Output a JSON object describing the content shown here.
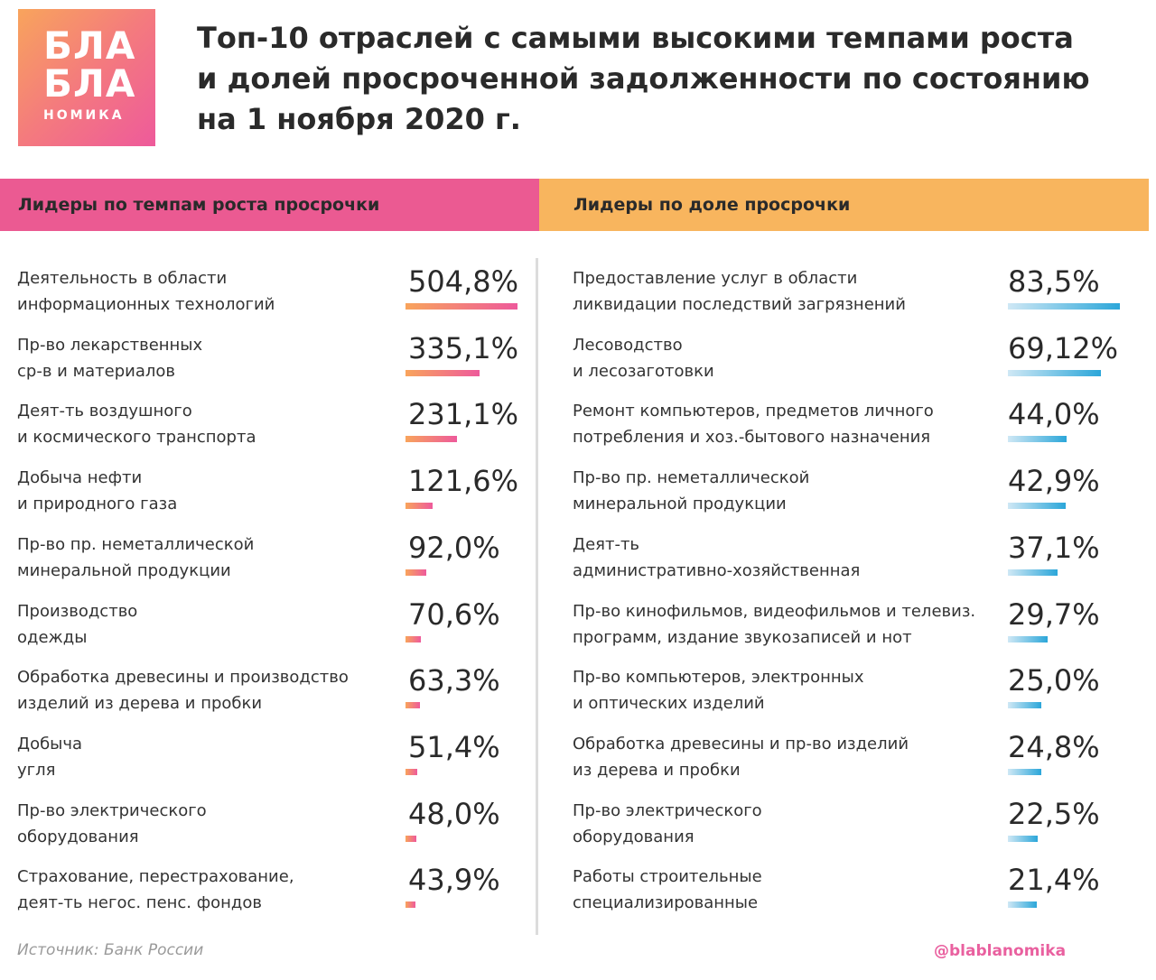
{
  "logo": {
    "line1": "БЛА",
    "line2": "БЛА",
    "line3": "НОМИКА"
  },
  "title": {
    "line1": "Топ-10 отраслей с самыми высокими темпами роста",
    "line2": "и долей просроченной задолженности по состоянию",
    "line3": "на 1 ноября 2020 г."
  },
  "headers": {
    "left": "Лидеры по темпам роста просрочки",
    "right": "Лидеры по доле просрочки"
  },
  "colors": {
    "left_accent": "#eb5a92",
    "right_accent": "#f8b55e",
    "bar_left": "#f47a7e",
    "bar_right": "#2ba6d9"
  },
  "chart_data": [
    {
      "type": "bar",
      "title": "Лидеры по темпам роста просрочки",
      "unit": "%",
      "categories": [
        [
          "Деятельность в области",
          "информационных технологий"
        ],
        [
          "Пр-во лекарственных",
          "ср-в и материалов"
        ],
        [
          "Деят-ть воздушного",
          "и космического транспорта"
        ],
        [
          "Добыча нефти",
          "и природного газа"
        ],
        [
          "Пр-во пр. неметаллической",
          "минеральной продукции"
        ],
        [
          "Производство",
          "одежды"
        ],
        [
          "Обработка древесины и производство",
          "изделий из дерева и пробки"
        ],
        [
          "Добыча",
          "угля"
        ],
        [
          "Пр-во электрического",
          "оборудования"
        ],
        [
          "Страхование, перестрахование,",
          "деят-ть негос. пенс. фондов"
        ]
      ],
      "values": [
        504.8,
        335.1,
        231.1,
        121.6,
        92.0,
        70.6,
        63.3,
        51.4,
        48.0,
        43.9
      ],
      "labels": [
        "504,8%",
        "335,1%",
        "231,1%",
        "121,6%",
        "92,0%",
        "70,6%",
        "63,3%",
        "51,4%",
        "48,0%",
        "43,9%"
      ]
    },
    {
      "type": "bar",
      "title": "Лидеры по доле просрочки",
      "unit": "%",
      "categories": [
        [
          "Предоставление услуг в области",
          "ликвидации последствий загрязнений"
        ],
        [
          "Лесоводство",
          "и лесозаготовки"
        ],
        [
          "Ремонт компьютеров, предметов личного",
          "потребления и хоз.-бытового назначения"
        ],
        [
          "Пр-во пр. неметаллической",
          "минеральной продукции"
        ],
        [
          "Деят-ть",
          "административно-хозяйственная"
        ],
        [
          "Пр-во кинофильмов, видеофильмов и телевиз.",
          "программ, издание звукозаписей и нот"
        ],
        [
          "Пр-во компьютеров, электронных",
          "и оптических изделий"
        ],
        [
          "Обработка древесины и пр-во изделий",
          "из дерева и пробки"
        ],
        [
          "Пр-во электрического",
          "оборудования"
        ],
        [
          "Работы строительные",
          "специализированные"
        ]
      ],
      "values": [
        83.5,
        69.12,
        44.0,
        42.9,
        37.1,
        29.7,
        25.0,
        24.8,
        22.5,
        21.4
      ],
      "labels": [
        "83,5%",
        "69,12%",
        "44,0%",
        "42,9%",
        "37,1%",
        "29,7%",
        "25,0%",
        "24,8%",
        "22,5%",
        "21,4%"
      ]
    }
  ],
  "footer": {
    "source": "Источник:  Банк России",
    "handle": "@blablanomika"
  }
}
